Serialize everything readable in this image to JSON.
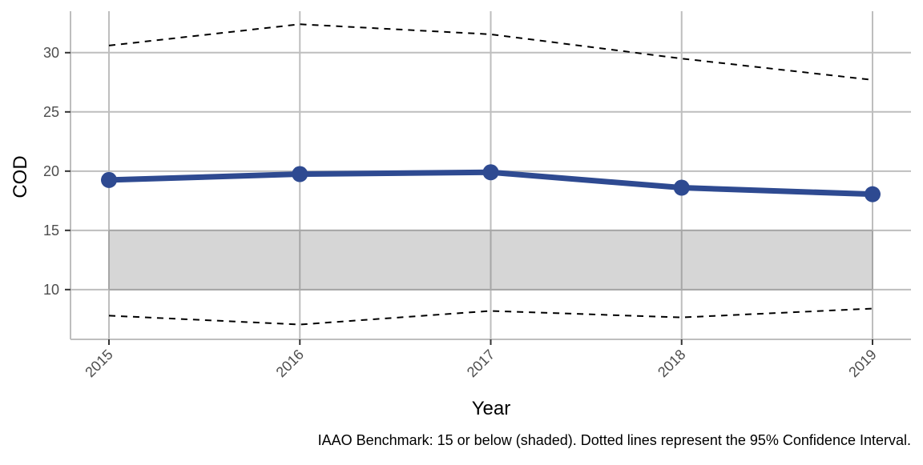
{
  "chart_data": {
    "type": "line",
    "title": "",
    "xlabel": "Year",
    "ylabel": "COD",
    "caption": "IAAO Benchmark: 15 or below (shaded). Dotted lines represent the 95% Confidence Interval.",
    "x": [
      "2015",
      "2016",
      "2017",
      "2018",
      "2019"
    ],
    "ylim": [
      5.8,
      33.5
    ],
    "yticks": [
      10,
      15,
      20,
      25,
      30
    ],
    "ytick_labels": [
      "10",
      "15",
      "20",
      "25",
      "30"
    ],
    "series": [
      {
        "values": [
          19.25,
          19.75,
          19.9,
          18.6,
          18.05
        ],
        "color": "#2e4a91",
        "style": "solid-with-points"
      },
      {
        "values": [
          30.6,
          32.4,
          31.55,
          29.5,
          27.7
        ],
        "color": "#000000",
        "style": "dashed"
      },
      {
        "values": [
          7.8,
          7.05,
          8.2,
          7.65,
          8.4
        ],
        "color": "#000000",
        "style": "dashed"
      }
    ],
    "benchmark_band": {
      "from": 10,
      "to": 15,
      "color": "#d6d6d6"
    },
    "grid": true,
    "legend": "none"
  }
}
